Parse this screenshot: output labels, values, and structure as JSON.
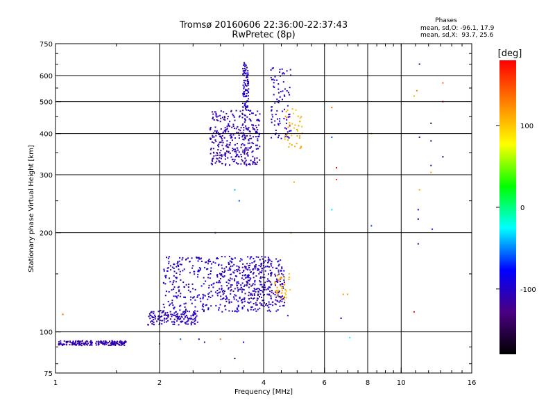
{
  "chart_data": {
    "type": "scatter",
    "title": "Tromsø 20160606 22:36:00-22:37:43",
    "subtitle": "RwPretec (8p)",
    "xlabel": "Frequency [MHz]",
    "ylabel": "Stationary phase Virtual Height [km]",
    "x_scale": "log",
    "y_scale": "log",
    "xlim": [
      1,
      16
    ],
    "ylim": [
      75,
      750
    ],
    "x_ticks": [
      1,
      2,
      4,
      6,
      8,
      10,
      16
    ],
    "x_tick_labels": [
      "1",
      "2",
      "4",
      "6",
      "8",
      "10",
      "16"
    ],
    "y_ticks": [
      75,
      100,
      200,
      300,
      400,
      500,
      600,
      750
    ],
    "y_tick_labels": [
      "75",
      "100",
      "200",
      "300",
      "400",
      "500",
      "600",
      "750"
    ],
    "x_gridlines": [
      2,
      4,
      6,
      8,
      10
    ],
    "y_gridlines": [
      100,
      200,
      300,
      400,
      500,
      600
    ],
    "grid": true,
    "stats": {
      "heading": "Phases",
      "line_o": "mean, sd,O: -96.1, 17.9",
      "line_x": "mean, sd,X:  93.7, 25.6"
    },
    "colorbar": {
      "label": "[deg]",
      "range": [
        -180,
        180
      ],
      "ticks": [
        100,
        0,
        -100
      ],
      "tick_labels": [
        "100",
        "0",
        "-100"
      ],
      "colors": [
        "#ff0000",
        "#ff8000",
        "#ffff00",
        "#00ff00",
        "#00ffff",
        "#0000ff",
        "#4b0082",
        "#000000"
      ]
    },
    "clusters": [
      {
        "xr": [
          1.02,
          1.6
        ],
        "yr": [
          91,
          94
        ],
        "n": 200,
        "phase": -110,
        "pspread": 8
      },
      {
        "xr": [
          1.85,
          2.6
        ],
        "yr": [
          105,
          116
        ],
        "n": 150,
        "phase": -105,
        "pspread": 10
      },
      {
        "xr": [
          2.05,
          4.6
        ],
        "yr": [
          115,
          170
        ],
        "n": 500,
        "phase": -100,
        "pspread": 18
      },
      {
        "xr": [
          3.0,
          4.6
        ],
        "yr": [
          120,
          160
        ],
        "n": 200,
        "phase": -110,
        "pspread": 12
      },
      {
        "xr": [
          4.3,
          4.8
        ],
        "yr": [
          125,
          150
        ],
        "n": 40,
        "phase": 110,
        "pspread": 12
      },
      {
        "xr": [
          2.8,
          3.9
        ],
        "yr": [
          320,
          470
        ],
        "n": 350,
        "phase": -110,
        "pspread": 12
      },
      {
        "xr": [
          3.48,
          3.62
        ],
        "yr": [
          470,
          660
        ],
        "n": 90,
        "phase": -100,
        "pspread": 10
      },
      {
        "xr": [
          4.2,
          4.8
        ],
        "yr": [
          380,
          640
        ],
        "n": 90,
        "phase": -100,
        "pspread": 12
      },
      {
        "xr": [
          4.6,
          5.2
        ],
        "yr": [
          360,
          480
        ],
        "n": 40,
        "phase": 110,
        "pspread": 12
      }
    ],
    "scatter_points": [
      {
        "x": 1.05,
        "y": 113,
        "phase": 140
      },
      {
        "x": 4.9,
        "y": 285,
        "phase": 110
      },
      {
        "x": 6.3,
        "y": 480,
        "phase": 140
      },
      {
        "x": 6.3,
        "y": 390,
        "phase": -60
      },
      {
        "x": 6.5,
        "y": 315,
        "phase": 180
      },
      {
        "x": 6.5,
        "y": 290,
        "phase": 160
      },
      {
        "x": 6.3,
        "y": 235,
        "phase": -30
      },
      {
        "x": 6.7,
        "y": 110,
        "phase": -100
      },
      {
        "x": 6.8,
        "y": 130,
        "phase": 120
      },
      {
        "x": 7.0,
        "y": 130,
        "phase": 120
      },
      {
        "x": 7.1,
        "y": 96,
        "phase": -30
      },
      {
        "x": 8.2,
        "y": 210,
        "phase": -60
      },
      {
        "x": 8.2,
        "y": 400,
        "phase": 120
      },
      {
        "x": 10.9,
        "y": 520,
        "phase": 110
      },
      {
        "x": 11.1,
        "y": 540,
        "phase": 130
      },
      {
        "x": 11.3,
        "y": 650,
        "phase": -110
      },
      {
        "x": 11.3,
        "y": 390,
        "phase": -110
      },
      {
        "x": 11.3,
        "y": 270,
        "phase": 110
      },
      {
        "x": 11.2,
        "y": 235,
        "phase": -100
      },
      {
        "x": 11.2,
        "y": 220,
        "phase": -100
      },
      {
        "x": 11.2,
        "y": 185,
        "phase": -100
      },
      {
        "x": 10.9,
        "y": 115,
        "phase": 180
      },
      {
        "x": 12.2,
        "y": 430,
        "phase": -160
      },
      {
        "x": 12.2,
        "y": 380,
        "phase": -140
      },
      {
        "x": 12.2,
        "y": 320,
        "phase": -120
      },
      {
        "x": 12.2,
        "y": 305,
        "phase": 120
      },
      {
        "x": 12.3,
        "y": 205,
        "phase": -100
      },
      {
        "x": 13.2,
        "y": 570,
        "phase": 140
      },
      {
        "x": 13.2,
        "y": 500,
        "phase": 180
      },
      {
        "x": 13.2,
        "y": 340,
        "phase": -150
      },
      {
        "x": 3.4,
        "y": 250,
        "phase": -60
      },
      {
        "x": 3.3,
        "y": 270,
        "phase": -40
      },
      {
        "x": 3.3,
        "y": 83,
        "phase": -150
      },
      {
        "x": 3.5,
        "y": 93,
        "phase": -80
      },
      {
        "x": 2.0,
        "y": 92,
        "phase": -50
      },
      {
        "x": 2.3,
        "y": 95,
        "phase": -60
      },
      {
        "x": 2.6,
        "y": 95,
        "phase": -100
      },
      {
        "x": 2.7,
        "y": 93,
        "phase": -120
      },
      {
        "x": 3.0,
        "y": 95,
        "phase": 140
      },
      {
        "x": 4.7,
        "y": 112,
        "phase": -100
      },
      {
        "x": 4.8,
        "y": 200,
        "phase": 120
      },
      {
        "x": 2.9,
        "y": 200,
        "phase": -60
      }
    ]
  }
}
